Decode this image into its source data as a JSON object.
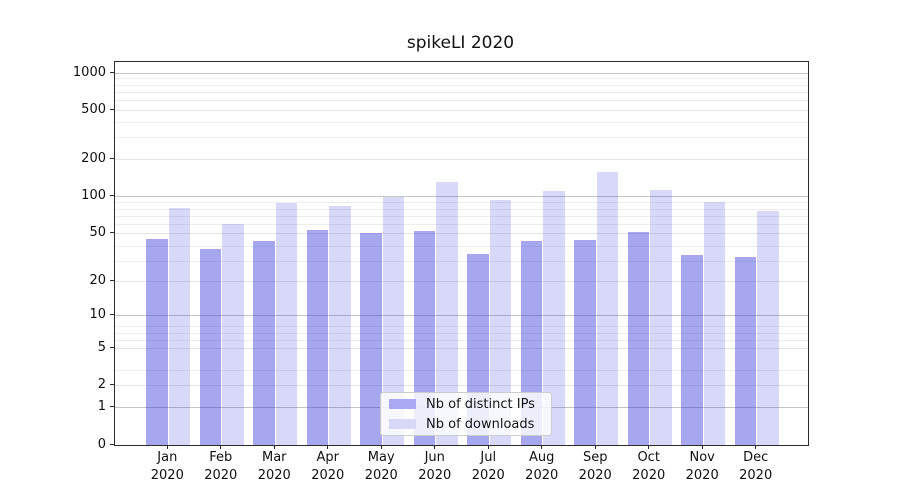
{
  "chart_data": {
    "type": "bar",
    "title": "spikeLI 2020",
    "categories": [
      "Jan",
      "Feb",
      "Mar",
      "Apr",
      "May",
      "Jun",
      "Jul",
      "Aug",
      "Sep",
      "Oct",
      "Nov",
      "Dec"
    ],
    "x_year_label": "2020",
    "series": [
      {
        "key": "distinct-ips",
        "name": "Nb of distinct IPs",
        "color": "rgba(60,60,220,0.45)",
        "legend_color": "#a9a9f3",
        "values": [
          45,
          37,
          43,
          53,
          50,
          52,
          34,
          43,
          44,
          51,
          33,
          32
        ]
      },
      {
        "key": "downloads",
        "name": "Nb of downloads",
        "color": "rgba(60,60,220,0.20)",
        "legend_color": "#d8d8f8",
        "values": [
          80,
          60,
          89,
          83,
          100,
          131,
          93,
          110,
          158,
          114,
          90,
          76
        ]
      }
    ],
    "yscale": {
      "type": "log1p",
      "ylim": [
        0,
        1227
      ],
      "ticks": [
        0,
        1,
        2,
        5,
        10,
        20,
        50,
        100,
        200,
        500,
        1000
      ]
    },
    "grid": {
      "major_values": [
        1,
        10,
        100,
        1000
      ],
      "major_color": "#c4c4c4",
      "mid_values": [
        2,
        5,
        20,
        50,
        200,
        500
      ],
      "mid_color": "#e4e4e4",
      "minor_color": "#ededed"
    },
    "legend_position": "lower center"
  }
}
